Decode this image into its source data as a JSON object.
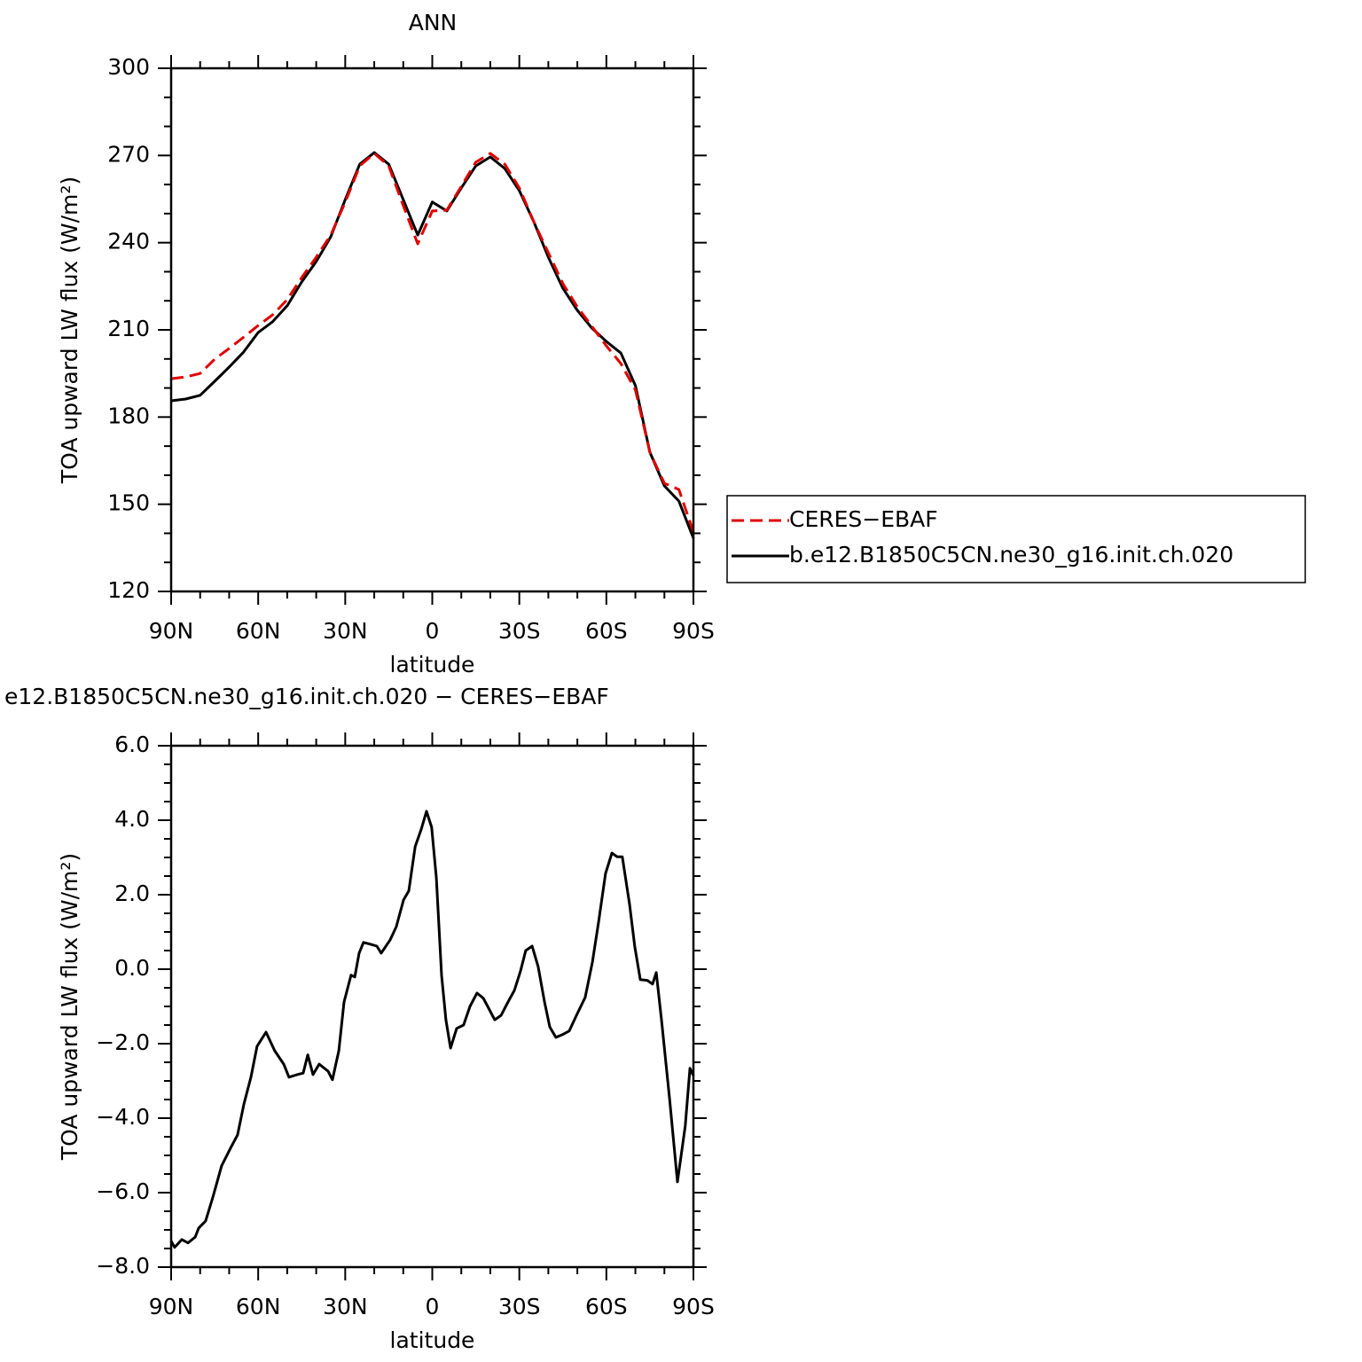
{
  "chart_data": [
    {
      "type": "line",
      "title": "ANN",
      "xlabel": "latitude",
      "ylabel": "TOA upward LW flux (W/m²)",
      "x": [
        90,
        85,
        80,
        75,
        70,
        65,
        60,
        55,
        50,
        45,
        40,
        35,
        30,
        25,
        20,
        15,
        10,
        5,
        0,
        -5,
        -10,
        -15,
        -20,
        -25,
        -30,
        -35,
        -40,
        -45,
        -50,
        -55,
        -60,
        -65,
        -70,
        -75,
        -80,
        -85,
        -90
      ],
      "series": [
        {
          "name": "CERES−EBAF",
          "color": "#e00000",
          "line_style": "dashed",
          "values": [
            193.2,
            193.8,
            195,
            199.9,
            203.6,
            207.5,
            211.5,
            215.2,
            220.4,
            228,
            235,
            242.6,
            253.9,
            266.4,
            270.7,
            266.4,
            252.7,
            239.6,
            250.9,
            251.2,
            259.4,
            267.7,
            270.7,
            267,
            258.8,
            247.2,
            236.5,
            225.9,
            217.9,
            211.2,
            204.5,
            198.4,
            189.3,
            167.9,
            157.2,
            155.1,
            140.4
          ]
        },
        {
          "name": "b.e12.B1850C5CN.ne30_g16.init.ch.020",
          "color": "#000000",
          "line_style": "solid",
          "values": [
            185.6,
            186.2,
            187.5,
            192.3,
            197.2,
            202.4,
            209.1,
            212.8,
            218.3,
            226.5,
            233.5,
            242,
            254.8,
            267,
            271,
            267,
            254.8,
            242.6,
            254,
            250.9,
            258.8,
            266.4,
            269.5,
            265.5,
            257.9,
            247.2,
            235,
            224.3,
            216.7,
            210.6,
            206,
            202,
            190.8,
            167.9,
            156.3,
            151.1,
            138.3
          ]
        }
      ],
      "xlim": [
        90,
        -90
      ],
      "xticks": [
        {
          "value": 90,
          "label": "90N"
        },
        {
          "value": 60,
          "label": "60N"
        },
        {
          "value": 30,
          "label": "30N"
        },
        0,
        {
          "value": -30,
          "label": "30S"
        },
        {
          "value": -60,
          "label": "60S"
        },
        {
          "value": -90,
          "label": "90S"
        }
      ],
      "ylim": [
        120,
        300
      ],
      "yticks": [
        120,
        150,
        180,
        210,
        240,
        270,
        300
      ],
      "legend": "outside-right"
    },
    {
      "type": "line",
      "title": "e12.B1850C5CN.ne30_g16.init.ch.020 − CERES−EBAF",
      "xlabel": "latitude",
      "ylabel": "TOA upward LW flux (W/m²)",
      "x": [
        90,
        88.8,
        86.3,
        84.2,
        81.7,
        80.5,
        78.1,
        75.6,
        72.6,
        69.5,
        67.1,
        64.9,
        62.5,
        60.4,
        57.3,
        54.3,
        51.2,
        49.4,
        46.6,
        44.5,
        42.9,
        41.1,
        39.0,
        35.9,
        34.4,
        32.2,
        30.4,
        28.0,
        26.7,
        25.2,
        23.7,
        21.2,
        19.1,
        17.6,
        14.5,
        12.4,
        9.9,
        8.1,
        5.9,
        3.8,
        2.0,
        0.2,
        -1.4,
        -3.2,
        -4.7,
        -6.3,
        -8.4,
        -10.8,
        -13.0,
        -15.4,
        -17.6,
        -19.1,
        -21.5,
        -23.7,
        -26.1,
        -28.3,
        -30.4,
        -32.2,
        -34.4,
        -36.5,
        -38.7,
        -40.5,
        -42.6,
        -44.8,
        -47.2,
        -49.7,
        -52.7,
        -55.2,
        -57.3,
        -59.7,
        -61.9,
        -63.7,
        -65.5,
        -68.0,
        -69.8,
        -71.7,
        -74.1,
        -75.9,
        -77.2,
        -79.0,
        -81.8,
        -84.5,
        -87.2,
        -88.8,
        -90
      ],
      "values": [
        -7.3,
        -7.47,
        -7.26,
        -7.35,
        -7.19,
        -6.95,
        -6.76,
        -6.12,
        -5.28,
        -4.8,
        -4.45,
        -3.62,
        -2.9,
        -2.07,
        -1.69,
        -2.19,
        -2.55,
        -2.9,
        -2.83,
        -2.79,
        -2.3,
        -2.83,
        -2.55,
        -2.74,
        -2.97,
        -2.19,
        -0.88,
        -0.16,
        -0.21,
        0.43,
        0.72,
        0.67,
        0.62,
        0.43,
        0.79,
        1.14,
        1.86,
        2.1,
        3.29,
        3.76,
        4.24,
        3.81,
        2.45,
        -0.17,
        -1.36,
        -2.12,
        -1.59,
        -1.5,
        -1.0,
        -0.64,
        -0.78,
        -1.0,
        -1.36,
        -1.24,
        -0.88,
        -0.57,
        -0.05,
        0.5,
        0.62,
        0.07,
        -0.88,
        -1.55,
        -1.83,
        -1.76,
        -1.66,
        -1.24,
        -0.76,
        0.19,
        1.26,
        2.57,
        3.12,
        3.02,
        3.02,
        1.74,
        0.6,
        -0.28,
        -0.3,
        -0.4,
        -0.09,
        -1.36,
        -3.5,
        -5.71,
        -4.21,
        -2.66,
        -2.86
      ],
      "color": "#000000",
      "line_style": "solid",
      "xlim": [
        90,
        -90
      ],
      "xticks": [
        {
          "value": 90,
          "label": "90N"
        },
        {
          "value": 60,
          "label": "60N"
        },
        {
          "value": 30,
          "label": "30N"
        },
        0,
        {
          "value": -30,
          "label": "30S"
        },
        {
          "value": -60,
          "label": "60S"
        },
        {
          "value": -90,
          "label": "90S"
        }
      ],
      "ylim": [
        -8,
        6
      ],
      "yticks": [
        {
          "value": -8,
          "label": "−8.0"
        },
        {
          "value": -6,
          "label": "−6.0"
        },
        {
          "value": -4,
          "label": "−4.0"
        },
        {
          "value": -2,
          "label": "−2.0"
        },
        {
          "value": 0,
          "label": "0.0"
        },
        {
          "value": 2,
          "label": "2.0"
        },
        {
          "value": 4,
          "label": "4.0"
        },
        {
          "value": 6,
          "label": "6.0"
        }
      ]
    }
  ]
}
